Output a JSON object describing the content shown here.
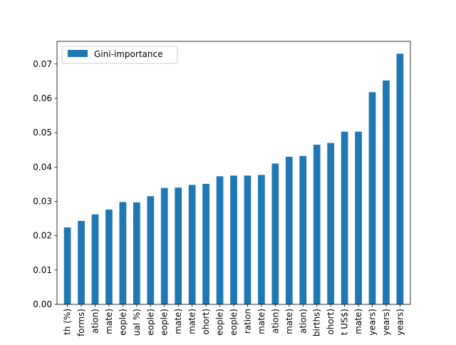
{
  "chart_data": {
    "type": "bar",
    "categories": [
      "th (%)",
      "forms)",
      "ation)",
      "mate)",
      "eople)",
      "ual %)",
      "eople)",
      "eople)",
      "mate)",
      "mate)",
      "ohort)",
      "eople)",
      "eople)",
      "ration",
      "mate)",
      "ation)",
      "mate)",
      "ation)",
      "births)",
      "ohort)",
      "t US$)",
      "mate)",
      "years)",
      "years)",
      "years)"
    ],
    "series": [
      {
        "name": "Gini-importance",
        "values": [
          0.0224,
          0.0243,
          0.0262,
          0.0276,
          0.0298,
          0.0297,
          0.0315,
          0.0339,
          0.034,
          0.0348,
          0.0351,
          0.0373,
          0.0375,
          0.0375,
          0.0377,
          0.041,
          0.043,
          0.0432,
          0.0465,
          0.047,
          0.0503,
          0.0503,
          0.0618,
          0.0652,
          0.073
        ]
      }
    ],
    "yticks": [
      "0.00",
      "0.01",
      "0.02",
      "0.03",
      "0.04",
      "0.05",
      "0.06",
      "0.07"
    ],
    "ylim": [
      0,
      0.0766
    ],
    "grid": false,
    "legend_position": "top-left",
    "color": "#1f77b4"
  }
}
